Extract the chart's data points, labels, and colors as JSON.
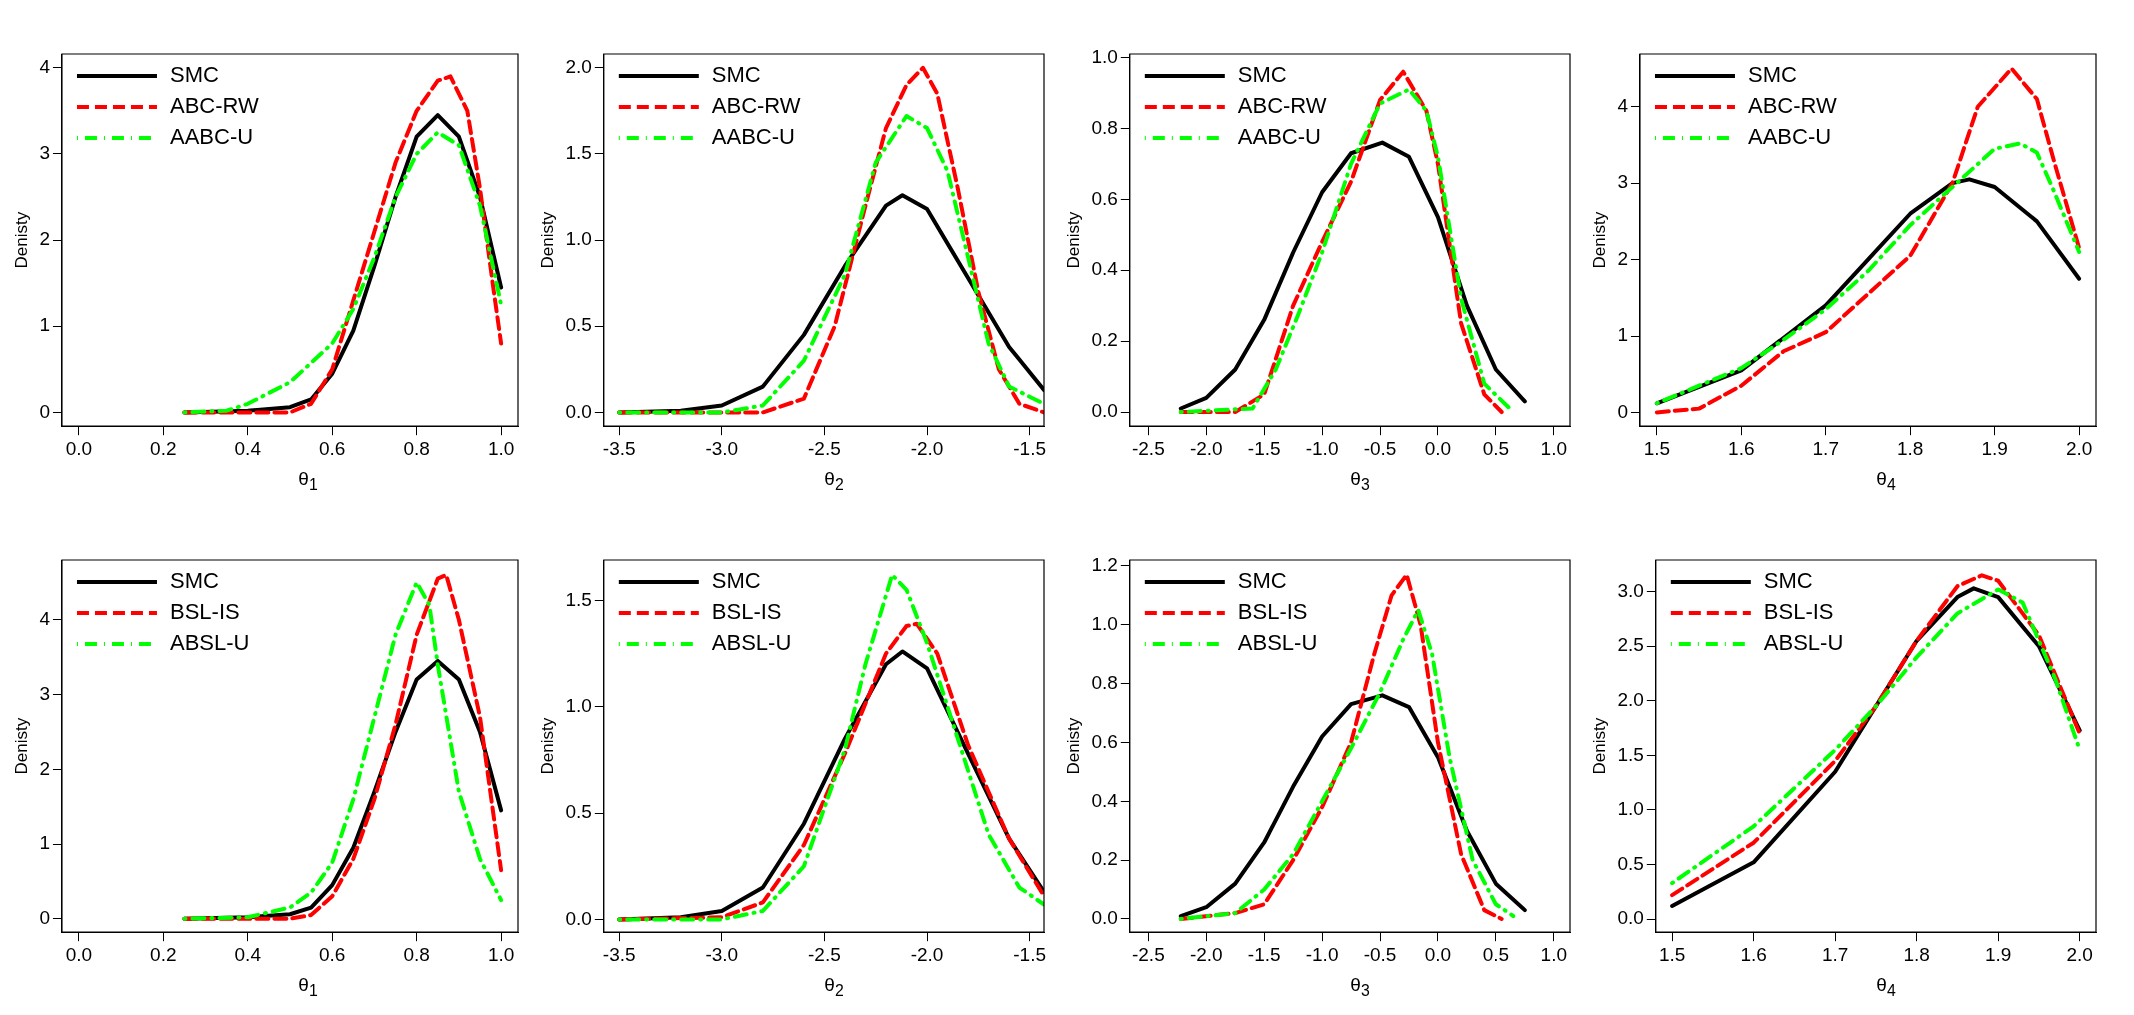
{
  "chart_data": [
    {
      "type": "line",
      "xlabel": "θ$_{1}$",
      "ylabel": "Denisty",
      "xlim": [
        -0.04,
        1.04
      ],
      "xticks": [
        {
          "value": 0,
          "label": "0.0"
        },
        0.2,
        0.4,
        0.6,
        0.8,
        {
          "value": 1,
          "label": "1.0"
        }
      ],
      "ylim": [
        -0.16,
        4.16
      ],
      "yticks": [
        0,
        1,
        2,
        3,
        4
      ],
      "legend": "top left",
      "series": [
        {
          "name": "SMC",
          "color": "#000000",
          "line_style": "solid",
          "x": [
            0.25,
            0.4,
            0.5,
            0.55,
            0.6,
            0.65,
            0.7,
            0.75,
            0.8,
            0.85,
            0.9,
            0.95,
            1.0
          ],
          "values": [
            0,
            0.02,
            0.06,
            0.15,
            0.45,
            0.95,
            1.7,
            2.5,
            3.2,
            3.45,
            3.2,
            2.5,
            1.45
          ]
        },
        {
          "name": "ABC-RW",
          "color": "#ff0000",
          "line_style": "dashed",
          "x": [
            0.25,
            0.5,
            0.55,
            0.6,
            0.65,
            0.7,
            0.75,
            0.8,
            0.85,
            0.88,
            0.92,
            0.95,
            0.98,
            1.0
          ],
          "values": [
            0,
            0,
            0.1,
            0.5,
            1.3,
            2.1,
            2.9,
            3.5,
            3.85,
            3.9,
            3.5,
            2.6,
            1.5,
            0.8
          ]
        },
        {
          "name": "AABC-U",
          "color": "#00ff00",
          "line_style": "dotdash",
          "x": [
            0.25,
            0.35,
            0.4,
            0.5,
            0.6,
            0.65,
            0.7,
            0.75,
            0.8,
            0.85,
            0.9,
            0.95,
            1.0
          ],
          "values": [
            0,
            0.02,
            0.1,
            0.35,
            0.8,
            1.2,
            1.8,
            2.5,
            3.0,
            3.25,
            3.1,
            2.4,
            1.25
          ]
        }
      ]
    },
    {
      "type": "line",
      "xlabel": "θ$_{2}$",
      "ylabel": "Denisty",
      "xlim": [
        -3.575,
        -1.43
      ],
      "xticks": [
        -3.5,
        {
          "value": -3,
          "label": "-3.0"
        },
        -2.5,
        {
          "value": -2,
          "label": "-2.0"
        },
        -1.5
      ],
      "ylim": [
        -0.08,
        2.08
      ],
      "yticks": [
        {
          "value": 0,
          "label": "0.0"
        },
        0.5,
        {
          "value": 1,
          "label": "1.0"
        },
        1.5,
        {
          "value": 2,
          "label": "2.0"
        }
      ],
      "legend": "top left",
      "series": [
        {
          "name": "SMC",
          "color": "#000000",
          "line_style": "solid",
          "x": [
            -3.5,
            -3.2,
            -3.0,
            -2.8,
            -2.6,
            -2.4,
            -2.2,
            -2.12,
            -2.0,
            -1.8,
            -1.6,
            -1.43
          ],
          "values": [
            0,
            0.01,
            0.04,
            0.15,
            0.45,
            0.85,
            1.2,
            1.26,
            1.18,
            0.78,
            0.38,
            0.13
          ]
        },
        {
          "name": "ABC-RW",
          "color": "#ff0000",
          "line_style": "dashed",
          "x": [
            -3.5,
            -2.8,
            -2.6,
            -2.45,
            -2.3,
            -2.2,
            -2.1,
            -2.02,
            -1.95,
            -1.85,
            -1.75,
            -1.65,
            -1.55,
            -1.43
          ],
          "values": [
            0,
            0,
            0.08,
            0.5,
            1.2,
            1.65,
            1.9,
            2.0,
            1.85,
            1.3,
            0.7,
            0.25,
            0.05,
            0
          ]
        },
        {
          "name": "AABC-U",
          "color": "#00ff00",
          "line_style": "dotdash",
          "x": [
            -3.5,
            -3.0,
            -2.8,
            -2.6,
            -2.4,
            -2.25,
            -2.1,
            -2.0,
            -1.9,
            -1.8,
            -1.7,
            -1.6,
            -1.43
          ],
          "values": [
            0,
            0,
            0.04,
            0.3,
            0.8,
            1.45,
            1.72,
            1.65,
            1.4,
            0.9,
            0.4,
            0.15,
            0.05
          ]
        }
      ]
    },
    {
      "type": "line",
      "xlabel": "θ$_{3}$",
      "ylabel": "Denisty",
      "xlim": [
        -2.66,
        1.14
      ],
      "xticks": [
        -2.5,
        {
          "value": -2,
          "label": "-2.0"
        },
        -1.5,
        {
          "value": -1,
          "label": "-1.0"
        },
        -0.5,
        {
          "value": 0,
          "label": "0.0"
        },
        0.5,
        {
          "value": 1,
          "label": "1.0"
        }
      ],
      "ylim": [
        -0.04,
        1.01
      ],
      "yticks": [
        {
          "value": 0,
          "label": "0.0"
        },
        0.2,
        0.4,
        0.6,
        0.8,
        {
          "value": 1,
          "label": "1.0"
        }
      ],
      "legend": "top left",
      "series": [
        {
          "name": "SMC",
          "color": "#000000",
          "line_style": "solid",
          "x": [
            -2.22,
            -2.0,
            -1.75,
            -1.5,
            -1.25,
            -1.0,
            -0.75,
            -0.48,
            -0.25,
            0.0,
            0.25,
            0.5,
            0.75
          ],
          "values": [
            0.01,
            0.04,
            0.12,
            0.26,
            0.45,
            0.62,
            0.73,
            0.76,
            0.72,
            0.55,
            0.3,
            0.12,
            0.03
          ]
        },
        {
          "name": "ABC-RW",
          "color": "#ff0000",
          "line_style": "dashed",
          "x": [
            -2.22,
            -1.75,
            -1.5,
            -1.25,
            -1.0,
            -0.75,
            -0.5,
            -0.3,
            -0.1,
            0.0,
            0.2,
            0.4,
            0.55
          ],
          "values": [
            0,
            0,
            0.05,
            0.3,
            0.48,
            0.65,
            0.88,
            0.96,
            0.85,
            0.7,
            0.25,
            0.05,
            0
          ]
        },
        {
          "name": "AABC-U",
          "color": "#00ff00",
          "line_style": "dotdash",
          "x": [
            -2.22,
            -1.6,
            -1.4,
            -1.2,
            -1.0,
            -0.75,
            -0.5,
            -0.25,
            -0.1,
            0.0,
            0.2,
            0.4,
            0.62
          ],
          "values": [
            0,
            0.01,
            0.12,
            0.28,
            0.45,
            0.7,
            0.87,
            0.91,
            0.85,
            0.72,
            0.32,
            0.08,
            0.01
          ]
        }
      ]
    },
    {
      "type": "line",
      "xlabel": "θ$_{4}$",
      "ylabel": "Denisty",
      "xlim": [
        1.48,
        2.02
      ],
      "xticks": [
        1.5,
        1.6,
        1.7,
        1.8,
        1.9,
        {
          "value": 2,
          "label": "2.0"
        }
      ],
      "ylim": [
        -0.18,
        4.69
      ],
      "yticks": [
        0,
        1,
        2,
        3,
        4
      ],
      "legend": "top left",
      "series": [
        {
          "name": "SMC",
          "color": "#000000",
          "line_style": "solid",
          "x": [
            1.5,
            1.6,
            1.7,
            1.75,
            1.8,
            1.85,
            1.87,
            1.9,
            1.95,
            2.0
          ],
          "values": [
            0.12,
            0.55,
            1.4,
            2.0,
            2.6,
            3.0,
            3.05,
            2.95,
            2.5,
            1.75
          ]
        },
        {
          "name": "ABC-RW",
          "color": "#ff0000",
          "line_style": "dashed",
          "x": [
            1.5,
            1.55,
            1.6,
            1.65,
            1.7,
            1.75,
            1.8,
            1.85,
            1.88,
            1.92,
            1.95,
            1.97,
            2.0
          ],
          "values": [
            0,
            0.05,
            0.35,
            0.8,
            1.05,
            1.55,
            2.05,
            3.0,
            4.0,
            4.5,
            4.1,
            3.3,
            2.15
          ]
        },
        {
          "name": "AABC-U",
          "color": "#00ff00",
          "line_style": "dotdash",
          "x": [
            1.5,
            1.6,
            1.65,
            1.7,
            1.75,
            1.8,
            1.85,
            1.9,
            1.93,
            1.95,
            1.97,
            2.0
          ],
          "values": [
            0.12,
            0.58,
            0.95,
            1.35,
            1.85,
            2.45,
            2.95,
            3.45,
            3.52,
            3.4,
            2.9,
            2.1
          ]
        }
      ]
    },
    {
      "type": "line",
      "xlabel": "θ$_{1}$",
      "ylabel": "Denisty",
      "xlim": [
        -0.04,
        1.04
      ],
      "xticks": [
        {
          "value": 0,
          "label": "0.0"
        },
        0.2,
        0.4,
        0.6,
        0.8,
        {
          "value": 1,
          "label": "1.0"
        }
      ],
      "ylim": [
        -0.18,
        4.8
      ],
      "yticks": [
        0,
        1,
        2,
        3,
        4
      ],
      "legend": "top left",
      "series": [
        {
          "name": "SMC",
          "color": "#000000",
          "line_style": "solid",
          "x": [
            0.25,
            0.4,
            0.5,
            0.55,
            0.6,
            0.65,
            0.7,
            0.75,
            0.8,
            0.85,
            0.9,
            0.95,
            1.0
          ],
          "values": [
            0,
            0.02,
            0.06,
            0.15,
            0.45,
            0.95,
            1.7,
            2.5,
            3.2,
            3.45,
            3.2,
            2.5,
            1.45
          ]
        },
        {
          "name": "BSL-IS",
          "color": "#ff0000",
          "line_style": "dashed",
          "x": [
            0.25,
            0.5,
            0.55,
            0.6,
            0.65,
            0.7,
            0.75,
            0.8,
            0.85,
            0.87,
            0.9,
            0.95,
            1.0
          ],
          "values": [
            0,
            0,
            0.05,
            0.3,
            0.8,
            1.6,
            2.6,
            3.8,
            4.55,
            4.6,
            4.0,
            2.7,
            0.65
          ]
        },
        {
          "name": "ABSL-U",
          "color": "#00ff00",
          "line_style": "dotdash",
          "x": [
            0.25,
            0.4,
            0.5,
            0.55,
            0.6,
            0.65,
            0.7,
            0.75,
            0.8,
            0.83,
            0.85,
            0.9,
            0.95,
            1.0
          ],
          "values": [
            0,
            0.02,
            0.15,
            0.35,
            0.75,
            1.6,
            2.7,
            3.8,
            4.5,
            4.2,
            3.4,
            1.7,
            0.8,
            0.25
          ]
        }
      ]
    },
    {
      "type": "line",
      "xlabel": "θ$_{2}$",
      "ylabel": "Denisty",
      "xlim": [
        -3.575,
        -1.43
      ],
      "xticks": [
        -3.5,
        {
          "value": -3,
          "label": "-3.0"
        },
        -2.5,
        {
          "value": -2,
          "label": "-2.0"
        },
        -1.5
      ],
      "ylim": [
        -0.06,
        1.69
      ],
      "yticks": [
        {
          "value": 0,
          "label": "0.0"
        },
        0.5,
        {
          "value": 1,
          "label": "1.0"
        },
        1.5
      ],
      "legend": "top left",
      "series": [
        {
          "name": "SMC",
          "color": "#000000",
          "line_style": "solid",
          "x": [
            -3.5,
            -3.2,
            -3.0,
            -2.8,
            -2.6,
            -2.4,
            -2.2,
            -2.12,
            -2.0,
            -1.8,
            -1.6,
            -1.43
          ],
          "values": [
            0,
            0.01,
            0.04,
            0.15,
            0.45,
            0.85,
            1.2,
            1.26,
            1.18,
            0.78,
            0.38,
            0.13
          ]
        },
        {
          "name": "BSL-IS",
          "color": "#ff0000",
          "line_style": "dashed",
          "x": [
            -3.5,
            -3.0,
            -2.8,
            -2.6,
            -2.4,
            -2.2,
            -2.1,
            -2.05,
            -1.95,
            -1.8,
            -1.6,
            -1.43
          ],
          "values": [
            0,
            0.01,
            0.08,
            0.35,
            0.78,
            1.25,
            1.38,
            1.39,
            1.25,
            0.82,
            0.38,
            0.11
          ]
        },
        {
          "name": "ABSL-U",
          "color": "#00ff00",
          "line_style": "dotdash",
          "x": [
            -3.5,
            -3.0,
            -2.8,
            -2.6,
            -2.4,
            -2.3,
            -2.17,
            -2.1,
            -2.0,
            -1.85,
            -1.7,
            -1.55,
            -1.43
          ],
          "values": [
            0,
            0,
            0.04,
            0.25,
            0.8,
            1.2,
            1.62,
            1.55,
            1.3,
            0.85,
            0.4,
            0.15,
            0.07
          ]
        }
      ]
    },
    {
      "type": "line",
      "xlabel": "θ$_{3}$",
      "ylabel": "Denisty",
      "xlim": [
        -2.66,
        1.14
      ],
      "xticks": [
        -2.5,
        {
          "value": -2,
          "label": "-2.0"
        },
        -1.5,
        {
          "value": -1,
          "label": "-1.0"
        },
        -0.5,
        {
          "value": 0,
          "label": "0.0"
        },
        0.5,
        {
          "value": 1,
          "label": "1.0"
        }
      ],
      "ylim": [
        -0.045,
        1.22
      ],
      "yticks": [
        {
          "value": 0,
          "label": "0.0"
        },
        0.2,
        0.4,
        0.6,
        0.8,
        {
          "value": 1,
          "label": "1.0"
        },
        1.2
      ],
      "legend": "top left",
      "series": [
        {
          "name": "SMC",
          "color": "#000000",
          "line_style": "solid",
          "x": [
            -2.22,
            -2.0,
            -1.75,
            -1.5,
            -1.25,
            -1.0,
            -0.75,
            -0.48,
            -0.25,
            0.0,
            0.25,
            0.5,
            0.75
          ],
          "values": [
            0.01,
            0.04,
            0.12,
            0.26,
            0.45,
            0.62,
            0.73,
            0.76,
            0.72,
            0.55,
            0.3,
            0.12,
            0.03
          ]
        },
        {
          "name": "BSL-IS",
          "color": "#ff0000",
          "line_style": "dashed",
          "x": [
            -2.22,
            -1.75,
            -1.5,
            -1.25,
            -1.0,
            -0.75,
            -0.55,
            -0.4,
            -0.27,
            -0.15,
            0.0,
            0.2,
            0.4,
            0.55
          ],
          "values": [
            0,
            0.02,
            0.05,
            0.2,
            0.38,
            0.6,
            0.9,
            1.1,
            1.17,
            1.0,
            0.6,
            0.22,
            0.03,
            0
          ]
        },
        {
          "name": "ABSL-U",
          "color": "#00ff00",
          "line_style": "dotdash",
          "x": [
            -2.22,
            -1.75,
            -1.5,
            -1.25,
            -1.0,
            -0.75,
            -0.5,
            -0.3,
            -0.17,
            -0.05,
            0.1,
            0.3,
            0.5,
            0.65
          ],
          "values": [
            0,
            0.02,
            0.1,
            0.22,
            0.4,
            0.58,
            0.77,
            0.95,
            1.05,
            0.9,
            0.55,
            0.2,
            0.05,
            0.01
          ]
        }
      ]
    },
    {
      "type": "line",
      "xlabel": "θ$_{4}$",
      "ylabel": "Denisty",
      "xlim": [
        1.48,
        2.02
      ],
      "xticks": [
        1.5,
        1.6,
        1.7,
        1.8,
        1.9,
        {
          "value": 2,
          "label": "2.0"
        }
      ],
      "ylim": [
        -0.12,
        3.29
      ],
      "yticks": [
        {
          "value": 0,
          "label": "0.0"
        },
        0.5,
        {
          "value": 1,
          "label": "1.0"
        },
        1.5,
        {
          "value": 2,
          "label": "2.0"
        },
        2.5,
        {
          "value": 3,
          "label": "3.0"
        }
      ],
      "legend": "top left",
      "series": [
        {
          "name": "SMC",
          "color": "#000000",
          "line_style": "solid",
          "x": [
            1.5,
            1.6,
            1.7,
            1.75,
            1.8,
            1.85,
            1.87,
            1.9,
            1.95,
            2.0
          ],
          "values": [
            0.12,
            0.52,
            1.35,
            1.95,
            2.55,
            2.95,
            3.03,
            2.95,
            2.5,
            1.73
          ]
        },
        {
          "name": "BSL-IS",
          "color": "#ff0000",
          "line_style": "dashed",
          "x": [
            1.5,
            1.6,
            1.7,
            1.75,
            1.8,
            1.85,
            1.88,
            1.9,
            1.95,
            2.0
          ],
          "values": [
            0.22,
            0.7,
            1.45,
            1.95,
            2.55,
            3.05,
            3.15,
            3.1,
            2.6,
            1.7
          ]
        },
        {
          "name": "ABSL-U",
          "color": "#00ff00",
          "line_style": "dotdash",
          "x": [
            1.5,
            1.6,
            1.7,
            1.75,
            1.8,
            1.85,
            1.9,
            1.93,
            1.97,
            2.0
          ],
          "values": [
            0.33,
            0.85,
            1.55,
            1.95,
            2.4,
            2.8,
            3.02,
            2.9,
            2.2,
            1.55
          ]
        }
      ]
    }
  ]
}
